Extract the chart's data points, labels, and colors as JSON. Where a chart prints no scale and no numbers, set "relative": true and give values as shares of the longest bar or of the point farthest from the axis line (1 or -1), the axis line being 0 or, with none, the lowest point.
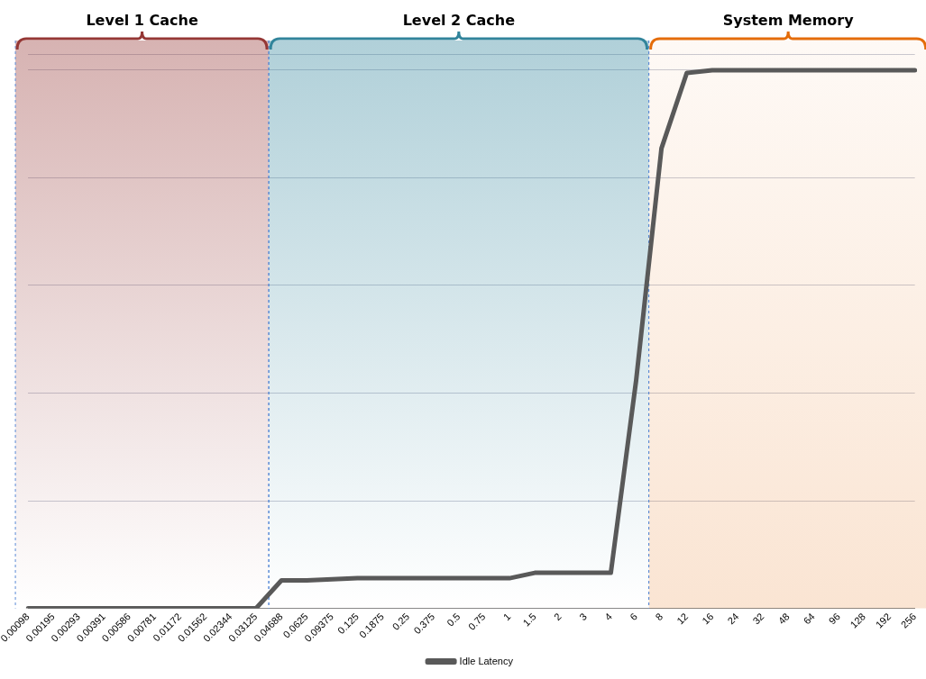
{
  "chart_data": {
    "type": "line",
    "relative": true,
    "categories": [
      "0.00098",
      "0.00195",
      "0.00293",
      "0.00391",
      "0.00586",
      "0.00781",
      "0.01172",
      "0.01562",
      "0.02344",
      "0.03125",
      "0.04688",
      "0.0625",
      "0.09375",
      "0.125",
      "0.1875",
      "0.25",
      "0.375",
      "0.5",
      "0.75",
      "1",
      "1.5",
      "2",
      "3",
      "4",
      "6",
      "8",
      "12",
      "16",
      "24",
      "32",
      "48",
      "64",
      "96",
      "128",
      "192",
      "256"
    ],
    "series": [
      {
        "name": "Idle Latency",
        "color": "#595959",
        "values": [
          0,
          0,
          0,
          0,
          0,
          0,
          0,
          0,
          0,
          0,
          0.052,
          0.052,
          0.054,
          0.056,
          0.056,
          0.056,
          0.056,
          0.056,
          0.056,
          0.056,
          0.066,
          0.066,
          0.066,
          0.066,
          0.424,
          0.855,
          0.995,
          1,
          1,
          1,
          1,
          1,
          1,
          1,
          1,
          1
        ]
      }
    ],
    "bands": [
      {
        "axis": "x",
        "from": "0.00098",
        "to": "0.03125",
        "label": "Level 1 Cache",
        "color": "#953735"
      },
      {
        "axis": "x",
        "from": "0.04688",
        "to": "6",
        "label": "Level 2 Cache",
        "color": "#31849b"
      },
      {
        "axis": "x",
        "from": "8",
        "to": "256",
        "label": "System Memory",
        "color": "#e46c0a"
      }
    ],
    "grid": "y",
    "legend": "bottom",
    "marker": "none",
    "line_style": "solid"
  }
}
